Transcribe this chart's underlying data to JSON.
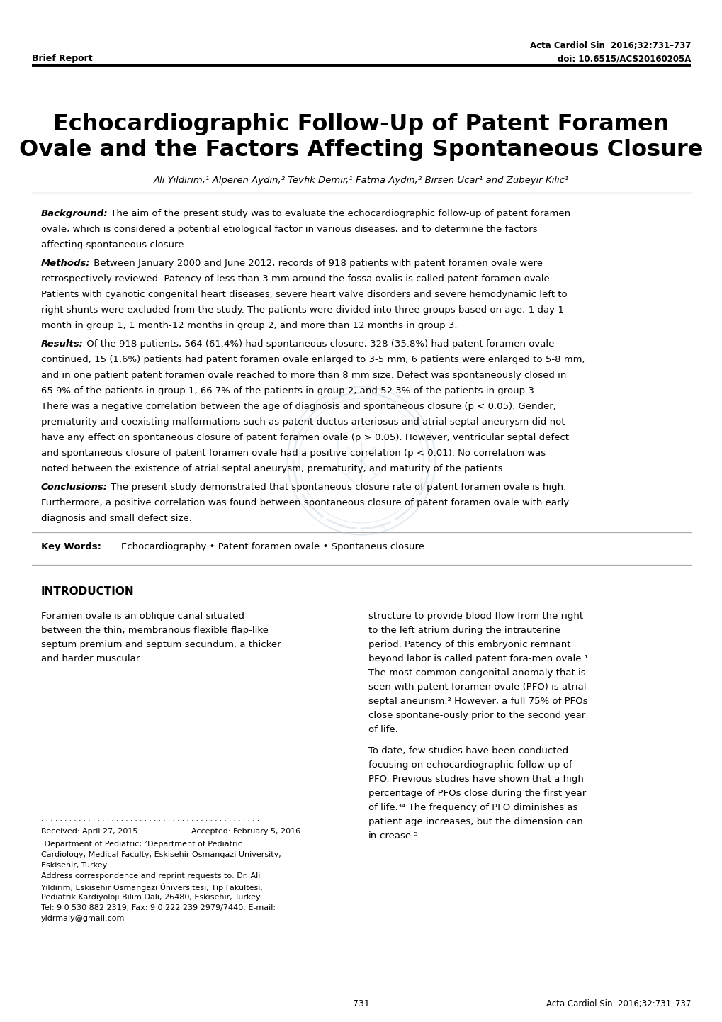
{
  "journal_ref": "Acta Cardiol Sin  2016;32:731–737",
  "doi": "doi: 10.6515/ACS20160205A",
  "report_type": "Brief Report",
  "title_line1": "Echocardiographic Follow-Up of Patent Foramen",
  "title_line2": "Ovale and the Factors Affecting Spontaneous Closure",
  "authors": "Ali Yildirim,¹ Alperen Aydin,² Tevfik Demir,¹ Fatma Aydin,² Birsen Ucar¹ and Zubeyir Kilic¹",
  "background_label": "Background:",
  "background_text": " The aim of the present study was to evaluate the echocardiographic follow-up of patent foramen ovale, which is considered a potential etiological factor in various diseases, and to determine the factors affecting spontaneous closure.",
  "methods_label": "Methods:",
  "methods_text": " Between January 2000 and June 2012, records of 918 patients with patent foramen ovale were retrospectively reviewed. Patency of less than 3 mm around the fossa ovalis is called patent foramen ovale. Patients with cyanotic congenital heart diseases, severe heart valve disorders and severe hemodynamic left to right shunts were excluded from the study. The patients were divided into three groups based on age; 1 day-1 month in group 1, 1 month-12 months in group 2, and more than 12 months in group 3.",
  "results_label": "Results:",
  "results_text": " Of the 918 patients, 564 (61.4%) had spontaneous closure, 328 (35.8%) had patent foramen ovale continued, 15 (1.6%) patients had patent foramen ovale enlarged to 3-5 mm, 6 patients were enlarged to 5-8 mm, and in one patient patent foramen ovale reached to more than 8 mm size. Defect was spontaneously closed in 65.9% of the patients in group 1, 66.7% of the patients in group 2, and 52.3% of the patients in group 3. There was a negative correlation between the age of diagnosis and spontaneous closure (p < 0.05). Gender, prematurity and coexisting malformations such as patent ductus arteriosus and atrial septal aneurysm did not have any effect on spontaneous closure of patent foramen ovale (p > 0.05). However, ventricular septal defect and spontaneous closure of patent foramen ovale had a positive correlation (p < 0.01). No correlation was noted between the existence of atrial septal aneurysm, prematurity, and maturity of the patients.",
  "conclusions_label": "Conclusions:",
  "conclusions_text": " The present study demonstrated that spontaneous closure rate of patent foramen ovale is high. Furthermore, a positive correlation was found between spontaneous closure of patent foramen ovale with early diagnosis and small defect size.",
  "keywords_label": "Key Words:",
  "keywords_text": "Echocardiography • Patent foramen ovale • Spontaneus closure",
  "intro_heading": "INTRODUCTION",
  "intro_left_p1": "     Foramen ovale is an oblique canal situated between the thin, membranous flexible flap-like septum premium and septum secundum, a thicker and harder muscular",
  "intro_right_p1": "structure to provide blood flow from the right to the left atrium during the intrauterine period. Patency of this embryonic remnant beyond labor is called patent fora-men ovale.¹ The most common congenital anomaly that is seen with patent foramen ovale (PFO) is atrial septal aneurism.² However, a full 75% of PFOs close spontane-ously prior to the second year of life.",
  "intro_right_p2": "     To date, few studies have been conducted focusing on echocardiographic follow-up of PFO. Previous studies have shown that a high percentage of PFOs close during the first year of life.³⁴ The frequency of PFO diminishes as patient age increases, but the dimension can in-crease.⁵",
  "footnote_dots": ". . . . . . . . . . . . . . . . . . . . . . . . . . . . . . . . . . . . . . . . . . . . . . .",
  "received_label": "Received: April 27, 2015",
  "accepted_label": "Accepted: February 5, 2016",
  "affil_text": "¹Department of Pediatric; ²Department of Pediatric Cardiology, Medical Faculty, Eskisehir Osmangazi University, Eskisehir, Turkey.\nAddress correspondence and reprint requests to: Dr. Ali Yildirim, Eskisehir Osmangazi Üniversitesi, Tıp Fakultesi, Pediatrik Kardiyoloji Bilim Dalı, 26480, Eskisehir, Turkey. Tel: 9 0 530 882 2319; Fax: 9 0 222 239 2979/7440; E-mail: yldrmaly@gmail.com",
  "page_num": "731",
  "page_ref": "Acta Cardiol Sin  2016;32:731–737"
}
